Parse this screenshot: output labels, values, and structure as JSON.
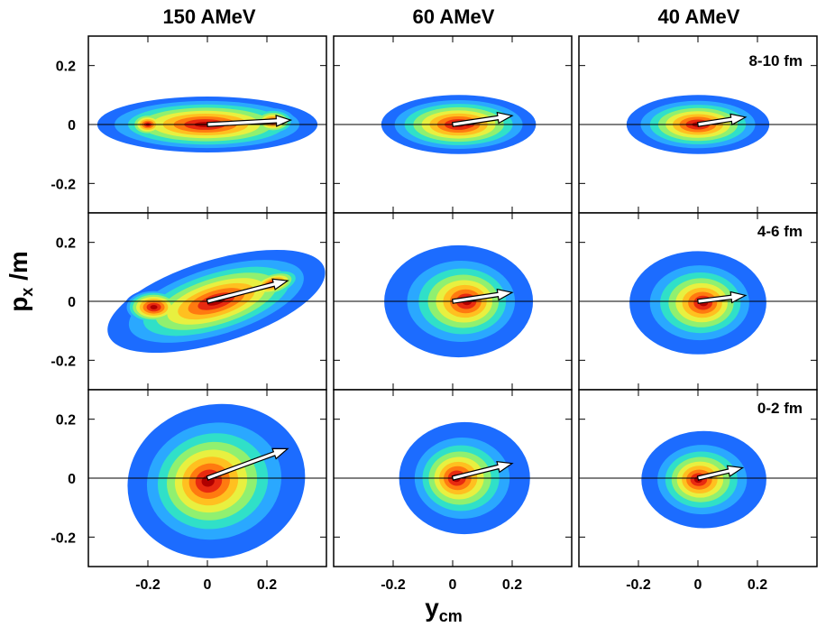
{
  "chart_data": {
    "type": "contour",
    "column_titles": [
      "150 AMeV",
      "60 AMeV",
      "40 AMeV"
    ],
    "row_labels": [
      "8-10 fm",
      "4-6 fm",
      "0-2 fm"
    ],
    "xlabel": {
      "main": "y",
      "sub": "cm"
    },
    "ylabel": {
      "main": "p",
      "sub": "x",
      "tail": " /m"
    },
    "xlim": [
      -0.4,
      0.4
    ],
    "ylim": [
      -0.3,
      0.3
    ],
    "xticks": [
      -0.2,
      0,
      0.2
    ],
    "xtick_labels": [
      "-0.2",
      "0",
      "0.2"
    ],
    "yticks": [
      0.2,
      0,
      -0.2
    ],
    "ytick_labels": [
      "0.2",
      "0",
      "-0.2"
    ],
    "colors": [
      "#1c6cff",
      "#2aa8ff",
      "#30e0c8",
      "#90f070",
      "#e8f040",
      "#ffc020",
      "#ff7a10",
      "#e82a10",
      "#b00000"
    ],
    "panels": [
      {
        "row": 0,
        "col": 0,
        "arrow": [
          0.28,
          0.015
        ],
        "blobs": [
          {
            "cx": 0.0,
            "cy": 0.0,
            "rx": 0.37,
            "ry": 0.095,
            "rot": 0,
            "w": 1.2,
            "dx": -0.01,
            "dy": 0.0
          },
          {
            "cx": -0.2,
            "cy": 0.0,
            "rx": 0.09,
            "ry": 0.06,
            "rot": 0,
            "w": 1.6,
            "dx": 0,
            "dy": 0
          },
          {
            "cx": 0.22,
            "cy": 0.01,
            "rx": 0.1,
            "ry": 0.06,
            "rot": 0,
            "w": 1.6,
            "dx": 0,
            "dy": 0
          }
        ]
      },
      {
        "row": 0,
        "col": 1,
        "arrow": [
          0.2,
          0.03
        ],
        "blobs": [
          {
            "cx": 0.02,
            "cy": 0.0,
            "rx": 0.26,
            "ry": 0.1,
            "rot": 0,
            "w": 1.25,
            "dx": 0,
            "dy": 0
          },
          {
            "cx": 0.05,
            "cy": 0.0,
            "rx": 0.14,
            "ry": 0.07,
            "rot": 0,
            "w": 1.4,
            "dx": 0,
            "dy": 0
          }
        ]
      },
      {
        "row": 0,
        "col": 2,
        "arrow": [
          0.16,
          0.025
        ],
        "blobs": [
          {
            "cx": 0.0,
            "cy": 0.0,
            "rx": 0.24,
            "ry": 0.1,
            "rot": 0,
            "w": 1.35,
            "dx": 0,
            "dy": 0
          },
          {
            "cx": 0.0,
            "cy": 0.0,
            "rx": 0.12,
            "ry": 0.065,
            "rot": 0,
            "w": 1.5,
            "dx": 0,
            "dy": 0
          }
        ]
      },
      {
        "row": 1,
        "col": 0,
        "arrow": [
          0.27,
          0.07
        ],
        "blobs": [
          {
            "cx": 0.03,
            "cy": 0.0,
            "rx": 0.38,
            "ry": 0.14,
            "rot": 17,
            "w": 1.35,
            "dx": 0,
            "dy": 0
          },
          {
            "cx": 0.22,
            "cy": 0.06,
            "rx": 0.12,
            "ry": 0.055,
            "rot": 17,
            "w": 1.4,
            "dx": 0,
            "dy": 0
          },
          {
            "cx": -0.18,
            "cy": -0.02,
            "rx": 0.1,
            "ry": 0.06,
            "rot": 0,
            "w": 0.9,
            "dx": 0,
            "dy": 0
          }
        ]
      },
      {
        "row": 1,
        "col": 1,
        "arrow": [
          0.2,
          0.03
        ],
        "blobs": [
          {
            "cx": 0.02,
            "cy": 0.0,
            "rx": 0.25,
            "ry": 0.19,
            "rot": 0,
            "w": 1.7,
            "dx": 0.03,
            "dy": 0.0
          }
        ]
      },
      {
        "row": 1,
        "col": 2,
        "arrow": [
          0.16,
          0.02
        ],
        "blobs": [
          {
            "cx": 0.0,
            "cy": -0.005,
            "rx": 0.23,
            "ry": 0.175,
            "rot": 0,
            "w": 1.7,
            "dx": 0.02,
            "dy": 0.0
          }
        ]
      },
      {
        "row": 2,
        "col": 0,
        "arrow": [
          0.27,
          0.1
        ],
        "blobs": [
          {
            "cx": 0.03,
            "cy": -0.01,
            "rx": 0.3,
            "ry": 0.26,
            "rot": 12,
            "w": 1.55,
            "dx": -0.03,
            "dy": 0.0
          }
        ]
      },
      {
        "row": 2,
        "col": 1,
        "arrow": [
          0.2,
          0.05
        ],
        "blobs": [
          {
            "cx": 0.04,
            "cy": 0.0,
            "rx": 0.22,
            "ry": 0.19,
            "rot": 0,
            "w": 1.7,
            "dx": -0.03,
            "dy": 0.0
          }
        ]
      },
      {
        "row": 2,
        "col": 2,
        "arrow": [
          0.15,
          0.035
        ],
        "blobs": [
          {
            "cx": 0.02,
            "cy": -0.005,
            "rx": 0.21,
            "ry": 0.165,
            "rot": 0,
            "w": 1.75,
            "dx": -0.02,
            "dy": 0.0
          }
        ]
      }
    ]
  }
}
